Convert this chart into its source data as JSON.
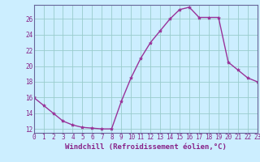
{
  "x": [
    0,
    1,
    2,
    3,
    4,
    5,
    6,
    7,
    8,
    9,
    10,
    11,
    12,
    13,
    14,
    15,
    16,
    17,
    18,
    19,
    20,
    21,
    22,
    23
  ],
  "y": [
    16.0,
    15.0,
    14.0,
    13.0,
    12.5,
    12.2,
    12.1,
    12.0,
    12.0,
    15.5,
    18.5,
    21.0,
    23.0,
    24.5,
    26.0,
    27.2,
    27.5,
    26.2,
    26.2,
    26.2,
    20.5,
    19.5,
    18.5,
    18.0
  ],
  "line_color": "#993399",
  "marker": "*",
  "marker_size": 3,
  "background_color": "#cceeff",
  "grid_color": "#99cccc",
  "xlabel": "Windchill (Refroidissement éolien,°C)",
  "xlabel_fontsize": 6.5,
  "xlim": [
    0,
    23
  ],
  "ylim": [
    11.5,
    27.8
  ],
  "yticks": [
    12,
    14,
    16,
    18,
    20,
    22,
    24,
    26
  ],
  "xtick_labels": [
    "0",
    "1",
    "2",
    "3",
    "4",
    "5",
    "6",
    "7",
    "8",
    "9",
    "10",
    "11",
    "12",
    "13",
    "14",
    "15",
    "16",
    "17",
    "18",
    "19",
    "20",
    "21",
    "22",
    "23"
  ],
  "tick_fontsize": 5.5,
  "tick_color": "#882288",
  "spine_color": "#666699",
  "line_width": 1.0
}
